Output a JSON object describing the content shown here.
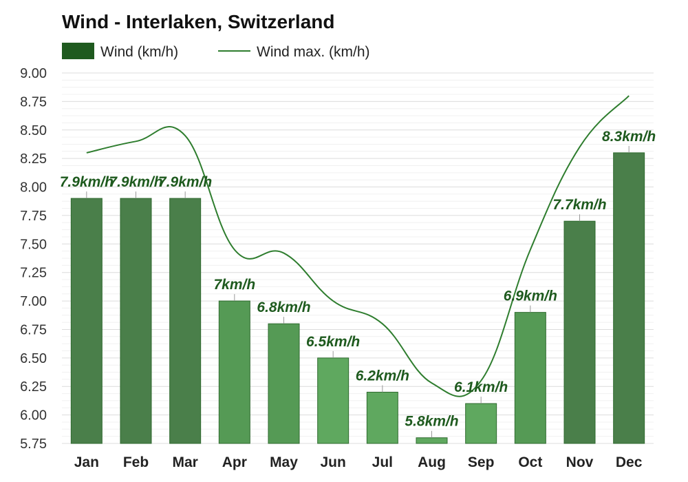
{
  "chart_data": {
    "type": "bar",
    "title": "Wind - Interlaken, Switzerland",
    "categories": [
      "Jan",
      "Feb",
      "Mar",
      "Apr",
      "May",
      "Jun",
      "Jul",
      "Aug",
      "Sep",
      "Oct",
      "Nov",
      "Dec"
    ],
    "series": [
      {
        "name": "Wind (km/h)",
        "type": "bar",
        "values": [
          7.9,
          7.9,
          7.9,
          7.0,
          6.8,
          6.5,
          6.2,
          5.8,
          6.1,
          6.9,
          7.7,
          8.3
        ],
        "labels": [
          "7.9km/h",
          "7.9km/h",
          "7.9km/h",
          "7km/h",
          "6.8km/h",
          "6.5km/h",
          "6.2km/h",
          "5.8km/h",
          "6.1km/h",
          "6.9km/h",
          "7.7km/h",
          "8.3km/h"
        ],
        "colors": [
          "#4a7f4a",
          "#4a7f4a",
          "#4a7f4a",
          "#559a55",
          "#559a55",
          "#5fa85f",
          "#5fa85f",
          "#5fa85f",
          "#5fa85f",
          "#559a55",
          "#4a7f4a",
          "#4a7f4a"
        ]
      },
      {
        "name": "Wind max. (km/h)",
        "type": "line",
        "values": [
          8.3,
          8.4,
          8.45,
          7.45,
          7.42,
          7.0,
          6.8,
          6.28,
          6.3,
          7.45,
          8.35,
          8.8
        ]
      }
    ],
    "ylim": [
      5.75,
      9.0
    ],
    "yticks": [
      "5.75",
      "6.00",
      "6.25",
      "6.50",
      "6.75",
      "7.00",
      "7.25",
      "7.50",
      "7.75",
      "8.00",
      "8.25",
      "8.50",
      "8.75",
      "9.00"
    ],
    "xlabel": "",
    "ylabel": "",
    "grid": true,
    "legend": "top-left",
    "colors": {
      "legend_bar": "#1f5a1f",
      "line": "#2e7d2e",
      "label": "#1e5a1e",
      "bar_stroke": "#2f6a2f",
      "grid": "#e4e4e4"
    }
  }
}
